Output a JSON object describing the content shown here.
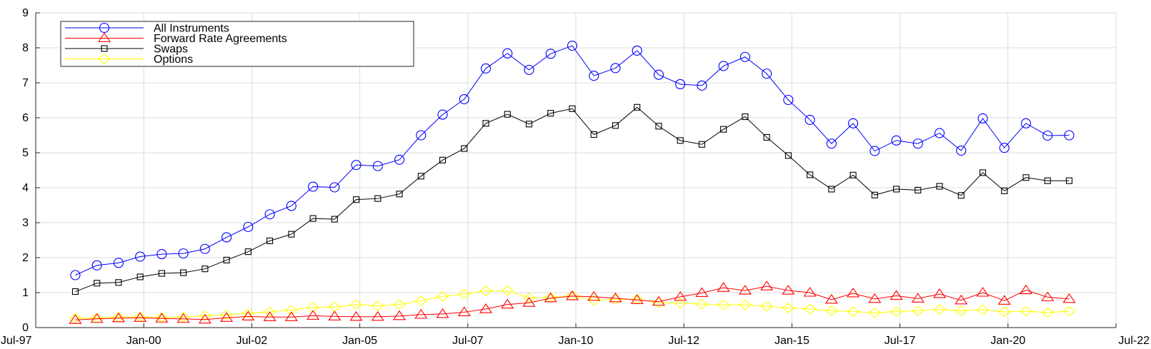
{
  "chart_data": {
    "type": "line",
    "title": "",
    "xlabel": "",
    "ylabel": "",
    "x_range": [
      "1997-07",
      "2022-07"
    ],
    "ylim": [
      0,
      9
    ],
    "grid": true,
    "legend_position": "top-left",
    "x_ticks": [
      {
        "date": "1997-07",
        "label": "Jul-97"
      },
      {
        "date": "2000-01",
        "label": "Jan-00"
      },
      {
        "date": "2002-07",
        "label": "Jul-02"
      },
      {
        "date": "2005-01",
        "label": "Jan-05"
      },
      {
        "date": "2007-07",
        "label": "Jul-07"
      },
      {
        "date": "2010-01",
        "label": "Jan-10"
      },
      {
        "date": "2012-07",
        "label": "Jul-12"
      },
      {
        "date": "2015-01",
        "label": "Jan-15"
      },
      {
        "date": "2017-07",
        "label": "Jul-17"
      },
      {
        "date": "2020-01",
        "label": "Jan-20"
      },
      {
        "date": "2022-07",
        "label": "Jul-22"
      }
    ],
    "y_ticks": [
      0,
      1,
      2,
      3,
      4,
      5,
      6,
      7,
      8,
      9
    ],
    "x": [
      "1998-06",
      "1998-12",
      "1999-06",
      "1999-12",
      "2000-06",
      "2000-12",
      "2001-06",
      "2001-12",
      "2002-06",
      "2002-12",
      "2003-06",
      "2003-12",
      "2004-06",
      "2004-12",
      "2005-06",
      "2005-12",
      "2006-06",
      "2006-12",
      "2007-06",
      "2007-12",
      "2008-06",
      "2008-12",
      "2009-06",
      "2009-12",
      "2010-06",
      "2010-12",
      "2011-06",
      "2011-12",
      "2012-06",
      "2012-12",
      "2013-06",
      "2013-12",
      "2014-06",
      "2014-12",
      "2015-06",
      "2015-12",
      "2016-06",
      "2016-12",
      "2017-06",
      "2017-12",
      "2018-06",
      "2018-12",
      "2019-06",
      "2019-12",
      "2020-06",
      "2020-12",
      "2021-06"
    ],
    "series": [
      {
        "name": "All Instruments",
        "color": "#0000ff",
        "marker": "circle",
        "values": [
          1.5,
          1.78,
          1.85,
          2.03,
          2.1,
          2.12,
          2.25,
          2.58,
          2.88,
          3.24,
          3.48,
          4.03,
          4.01,
          4.65,
          4.62,
          4.8,
          5.5,
          6.09,
          6.53,
          7.41,
          7.84,
          7.37,
          7.83,
          8.06,
          7.2,
          7.42,
          7.92,
          7.23,
          6.96,
          6.92,
          7.48,
          7.74,
          7.26,
          6.51,
          5.94,
          5.26,
          5.84,
          5.05,
          5.35,
          5.26,
          5.56,
          5.06,
          5.98,
          5.14,
          5.84,
          5.49,
          5.5
        ]
      },
      {
        "name": "Forward Rate Agreements",
        "color": "#ff0000",
        "marker": "triangle",
        "values": [
          0.22,
          0.25,
          0.27,
          0.28,
          0.26,
          0.25,
          0.23,
          0.28,
          0.32,
          0.3,
          0.3,
          0.34,
          0.32,
          0.31,
          0.31,
          0.33,
          0.37,
          0.39,
          0.44,
          0.53,
          0.66,
          0.71,
          0.84,
          0.9,
          0.88,
          0.84,
          0.79,
          0.74,
          0.88,
          0.99,
          1.14,
          1.06,
          1.18,
          1.06,
          1.0,
          0.8,
          0.98,
          0.82,
          0.91,
          0.83,
          0.96,
          0.78,
          1.0,
          0.77,
          1.07,
          0.87,
          0.82
        ]
      },
      {
        "name": "Swaps",
        "color": "#000000",
        "marker": "square",
        "values": [
          1.03,
          1.27,
          1.29,
          1.45,
          1.55,
          1.57,
          1.68,
          1.93,
          2.17,
          2.48,
          2.67,
          3.12,
          3.1,
          3.66,
          3.69,
          3.82,
          4.33,
          4.79,
          5.12,
          5.84,
          6.1,
          5.82,
          6.13,
          6.26,
          5.52,
          5.78,
          6.3,
          5.76,
          5.35,
          5.24,
          5.67,
          6.03,
          5.44,
          4.92,
          4.37,
          3.96,
          4.36,
          3.79,
          3.96,
          3.93,
          4.04,
          3.78,
          4.43,
          3.91,
          4.29,
          4.2,
          4.2
        ]
      },
      {
        "name": "Options",
        "color": "#ffff00",
        "marker": "diamond",
        "values": [
          0.27,
          0.27,
          0.3,
          0.3,
          0.29,
          0.3,
          0.34,
          0.36,
          0.41,
          0.45,
          0.5,
          0.58,
          0.59,
          0.66,
          0.62,
          0.66,
          0.77,
          0.89,
          0.96,
          1.05,
          1.05,
          0.85,
          0.86,
          0.91,
          0.78,
          0.8,
          0.81,
          0.71,
          0.7,
          0.67,
          0.65,
          0.65,
          0.61,
          0.56,
          0.53,
          0.48,
          0.46,
          0.42,
          0.46,
          0.48,
          0.52,
          0.48,
          0.51,
          0.45,
          0.47,
          0.43,
          0.47
        ]
      }
    ]
  }
}
